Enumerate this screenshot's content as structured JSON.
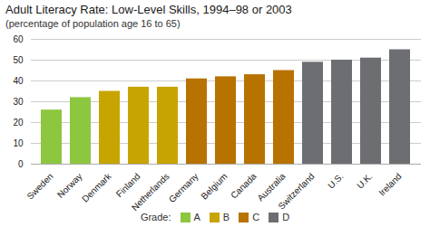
{
  "chart_data": {
    "type": "bar",
    "title": "Adult Literacy Rate: Low-Level Skills, 1994–98 or 2003",
    "subtitle": "(percentage of population age 16 to 65)",
    "categories": [
      "Sweden",
      "Norway",
      "Denmark",
      "Finland",
      "Netherlands",
      "Germany",
      "Belgium",
      "Canada",
      "Australia",
      "Switzerland",
      "U.S.",
      "U.K.",
      "Ireland"
    ],
    "values": [
      26,
      32,
      35,
      37,
      37,
      41,
      42,
      43,
      45,
      49,
      50,
      51,
      55
    ],
    "colors": [
      "#8dc63f",
      "#8dc63f",
      "#c8a400",
      "#c8a400",
      "#c8a400",
      "#b87200",
      "#b87200",
      "#b87200",
      "#b87200",
      "#6d6e71",
      "#6d6e71",
      "#6d6e71",
      "#6d6e71"
    ],
    "ylim": [
      0,
      60
    ],
    "yticks": [
      0,
      10,
      20,
      30,
      40,
      50,
      60
    ],
    "grid": true,
    "legend": "bottom",
    "legend_title": "Grade:",
    "legend_items": [
      {
        "name": "A",
        "color": "#8dc63f"
      },
      {
        "name": "B",
        "color": "#c8a400"
      },
      {
        "name": "C",
        "color": "#b87200"
      },
      {
        "name": "D",
        "color": "#6d6e71"
      }
    ]
  }
}
